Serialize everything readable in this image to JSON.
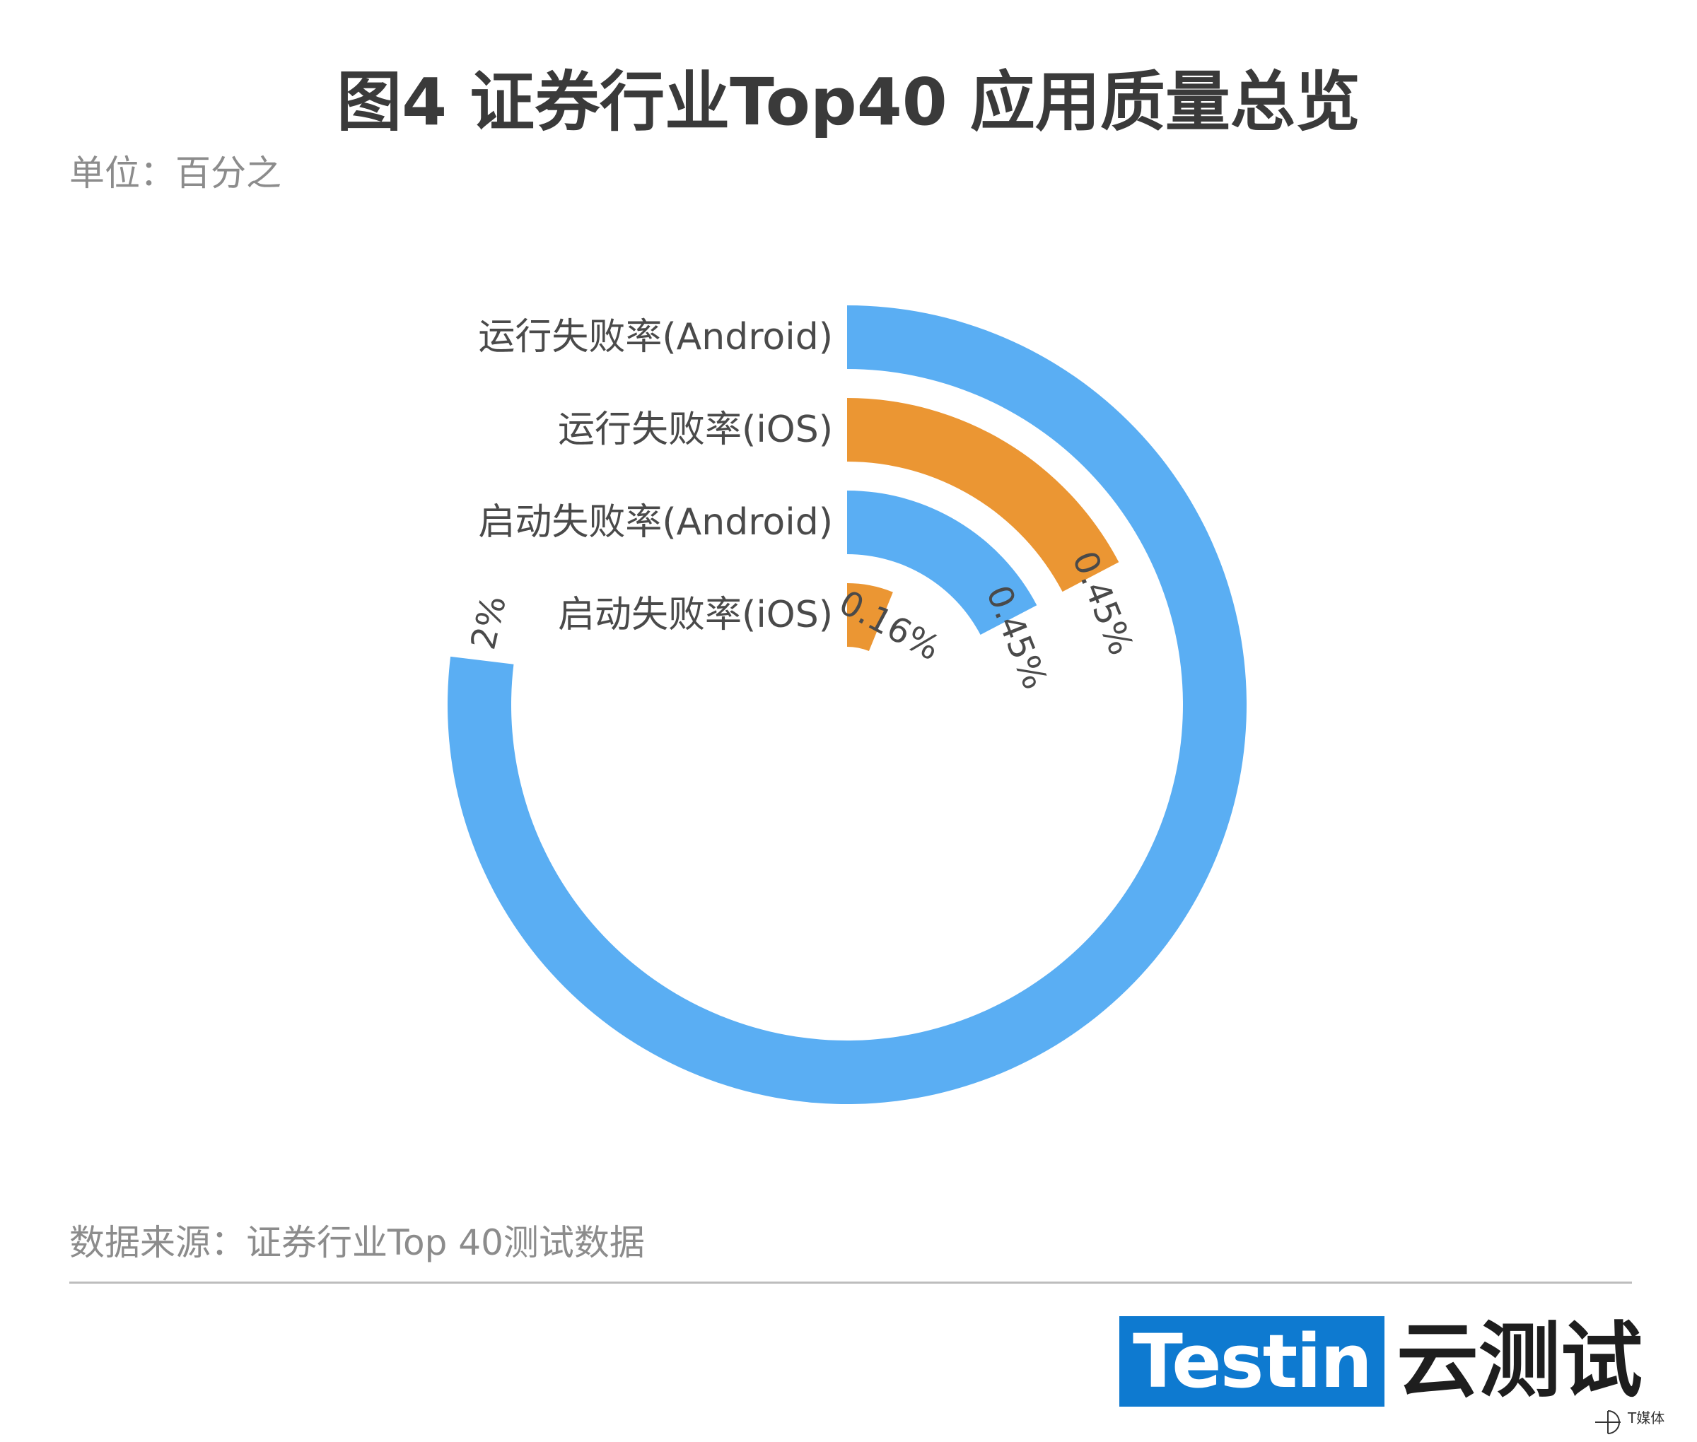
{
  "title": "图4 证券行业Top40 应用质量总览",
  "unit": "单位：百分之",
  "source": "数据来源：证券行业Top 40测试数据",
  "brand": {
    "logo_text": "Testin",
    "logo_cn": "云测试",
    "watermark": "T媒体"
  },
  "colors": {
    "blue": "#5aaef3",
    "orange": "#eb9633",
    "label": "#4a4a4a"
  },
  "chart_data": {
    "type": "radial-bar",
    "max": 2.6,
    "categories": [
      "运行失败率(Android)",
      "运行失败率(iOS)",
      "启动失败率(Android)",
      "启动失败率(iOS)"
    ],
    "series": [
      {
        "label": "运行失败率(Android)",
        "value": 2,
        "value_label": "2%",
        "color": "#5aaef3"
      },
      {
        "label": "运行失败率(iOS)",
        "value": 0.45,
        "value_label": "0.45%",
        "color": "#eb9633"
      },
      {
        "label": "启动失败率(Android)",
        "value": 0.45,
        "value_label": "0.45%",
        "color": "#5aaef3"
      },
      {
        "label": "启动失败率(iOS)",
        "value": 0.16,
        "value_label": "0.16%",
        "color": "#eb9633"
      }
    ]
  }
}
